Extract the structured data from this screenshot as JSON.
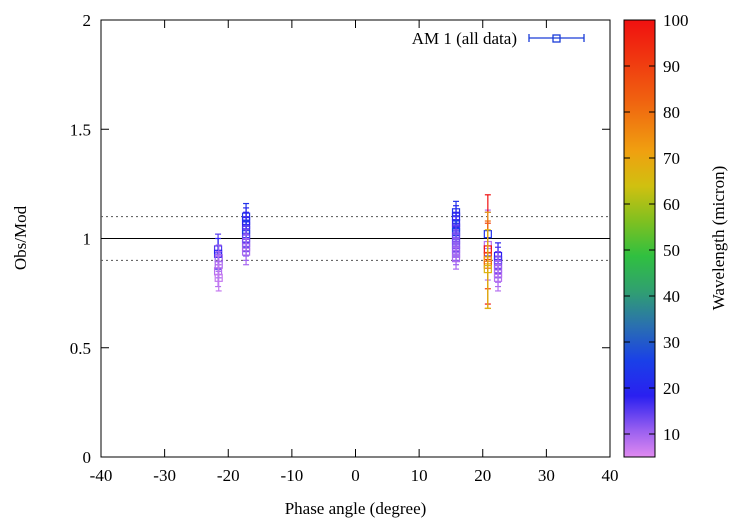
{
  "chart_data": {
    "type": "scatter",
    "xlabel": "Phase angle (degree)",
    "ylabel": "Obs/Mod",
    "xlim": [
      -40,
      40
    ],
    "ylim": [
      0,
      2
    ],
    "xticks": [
      "-40",
      "-30",
      "-20",
      "-10",
      "0",
      "10",
      "20",
      "30",
      "40"
    ],
    "yticks": [
      "0",
      "0.5",
      "1",
      "1.5",
      "2"
    ],
    "grid": false,
    "legend": {
      "position": "top-right",
      "entries": [
        "AM 1 (all data)"
      ]
    },
    "reference_lines": [
      {
        "y": 1.0,
        "style": "solid"
      },
      {
        "y": 1.1,
        "style": "dotted"
      },
      {
        "y": 0.9,
        "style": "dotted"
      }
    ],
    "colorbar": {
      "label": "Wavelength (micron)",
      "range": [
        5,
        100
      ],
      "ticks": [
        "10",
        "20",
        "30",
        "40",
        "50",
        "60",
        "70",
        "80",
        "90",
        "100"
      ]
    },
    "series": [
      {
        "name": "AM 1 (all data)",
        "points": [
          {
            "x": -21.6,
            "y": 0.95,
            "err": 0.07,
            "wl": 15
          },
          {
            "x": -21.6,
            "y": 0.93,
            "err": 0.07,
            "wl": 18
          },
          {
            "x": -21.5,
            "y": 0.91,
            "err": 0.06,
            "wl": 10
          },
          {
            "x": -21.5,
            "y": 0.88,
            "err": 0.06,
            "wl": 9
          },
          {
            "x": -21.6,
            "y": 0.85,
            "err": 0.07,
            "wl": 8
          },
          {
            "x": -21.5,
            "y": 0.82,
            "err": 0.06,
            "wl": 7
          },
          {
            "x": -17.2,
            "y": 1.1,
            "err": 0.06,
            "wl": 22
          },
          {
            "x": -17.2,
            "y": 1.08,
            "err": 0.06,
            "wl": 20
          },
          {
            "x": -17.2,
            "y": 1.06,
            "err": 0.06,
            "wl": 18
          },
          {
            "x": -17.2,
            "y": 1.04,
            "err": 0.06,
            "wl": 16
          },
          {
            "x": -17.2,
            "y": 1.02,
            "err": 0.06,
            "wl": 24
          },
          {
            "x": -17.2,
            "y": 1.0,
            "err": 0.06,
            "wl": 14
          },
          {
            "x": -17.2,
            "y": 0.98,
            "err": 0.06,
            "wl": 12
          },
          {
            "x": -17.2,
            "y": 0.96,
            "err": 0.06,
            "wl": 10
          },
          {
            "x": -17.2,
            "y": 0.94,
            "err": 0.06,
            "wl": 9
          },
          {
            "x": 15.8,
            "y": 1.12,
            "err": 0.05,
            "wl": 22
          },
          {
            "x": 15.8,
            "y": 1.1,
            "err": 0.05,
            "wl": 20
          },
          {
            "x": 15.8,
            "y": 1.07,
            "err": 0.05,
            "wl": 18
          },
          {
            "x": 15.8,
            "y": 1.05,
            "err": 0.05,
            "wl": 16
          },
          {
            "x": 15.8,
            "y": 1.03,
            "err": 0.05,
            "wl": 25
          },
          {
            "x": 15.8,
            "y": 1.01,
            "err": 0.05,
            "wl": 14
          },
          {
            "x": 15.8,
            "y": 0.99,
            "err": 0.05,
            "wl": 13
          },
          {
            "x": 15.8,
            "y": 0.97,
            "err": 0.05,
            "wl": 12
          },
          {
            "x": 15.8,
            "y": 0.95,
            "err": 0.05,
            "wl": 11
          },
          {
            "x": 15.8,
            "y": 0.93,
            "err": 0.05,
            "wl": 10
          },
          {
            "x": 15.8,
            "y": 0.91,
            "err": 0.05,
            "wl": 9
          },
          {
            "x": 20.8,
            "y": 1.02,
            "err": 0.1,
            "wl": 22
          },
          {
            "x": 20.8,
            "y": 0.97,
            "err": 0.16,
            "wl": 8
          },
          {
            "x": 20.8,
            "y": 0.95,
            "err": 0.25,
            "wl": 100
          },
          {
            "x": 20.8,
            "y": 0.92,
            "err": 0.15,
            "wl": 90
          },
          {
            "x": 20.8,
            "y": 0.9,
            "err": 0.22,
            "wl": 70
          },
          {
            "x": 20.8,
            "y": 0.88,
            "err": 0.2,
            "wl": 80
          },
          {
            "x": 20.8,
            "y": 0.86,
            "err": 0.18,
            "wl": 65
          },
          {
            "x": 22.4,
            "y": 0.92,
            "err": 0.06,
            "wl": 18
          },
          {
            "x": 22.4,
            "y": 0.9,
            "err": 0.06,
            "wl": 16
          },
          {
            "x": 22.4,
            "y": 0.88,
            "err": 0.06,
            "wl": 12
          },
          {
            "x": 22.4,
            "y": 0.86,
            "err": 0.06,
            "wl": 10
          },
          {
            "x": 22.4,
            "y": 0.84,
            "err": 0.06,
            "wl": 9
          },
          {
            "x": 22.4,
            "y": 0.82,
            "err": 0.06,
            "wl": 8
          }
        ]
      }
    ]
  }
}
